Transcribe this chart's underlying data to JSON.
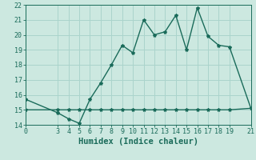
{
  "xlabel": "Humidex (Indice chaleur)",
  "line1_x": [
    0,
    3,
    4,
    5,
    6,
    7,
    8,
    9,
    10,
    11,
    12,
    13,
    14,
    15,
    16,
    17,
    18,
    19,
    21
  ],
  "line1_y": [
    15.7,
    14.8,
    14.4,
    14.1,
    15.7,
    16.8,
    18.0,
    19.3,
    18.8,
    21.0,
    20.0,
    20.2,
    21.3,
    19.0,
    21.8,
    19.9,
    19.3,
    19.2,
    15.1
  ],
  "line2_x": [
    0,
    3,
    4,
    5,
    6,
    7,
    8,
    9,
    10,
    11,
    12,
    13,
    14,
    15,
    16,
    17,
    18,
    19,
    21
  ],
  "line2_y": [
    15.0,
    15.0,
    15.0,
    15.0,
    15.0,
    15.0,
    15.0,
    15.0,
    15.0,
    15.0,
    15.0,
    15.0,
    15.0,
    15.0,
    15.0,
    15.0,
    15.0,
    15.0,
    15.1
  ],
  "line_color": "#1a6b5a",
  "bg_color": "#cce8e0",
  "grid_color": "#aad4cc",
  "xlim": [
    0,
    21
  ],
  "ylim": [
    14,
    22
  ],
  "xticks": [
    0,
    3,
    4,
    5,
    6,
    7,
    8,
    9,
    10,
    11,
    12,
    13,
    14,
    15,
    16,
    17,
    18,
    19,
    21
  ],
  "yticks": [
    14,
    15,
    16,
    17,
    18,
    19,
    20,
    21,
    22
  ],
  "marker": "*",
  "markersize": 3,
  "linewidth": 1.0,
  "tick_fontsize": 6,
  "xlabel_fontsize": 7.5,
  "xlabel_fontweight": "bold"
}
